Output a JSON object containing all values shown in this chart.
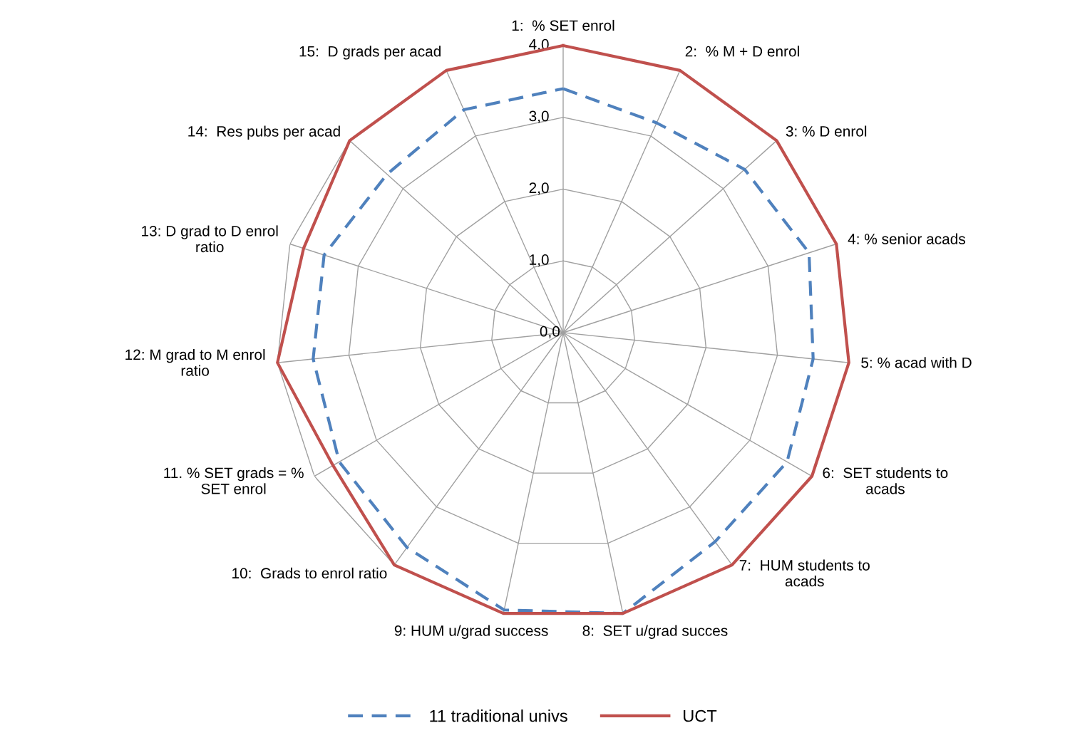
{
  "chart_data": {
    "type": "radar",
    "categories": [
      "1:  % SET enrol",
      "2:  % M + D enrol",
      "3: % D enrol",
      "4: % senior acads",
      "5: % acad with D",
      "6:  SET students to\nacads",
      "7:  HUM students to\nacads",
      "8:  SET u/grad succes",
      "9: HUM u/grad success",
      "10:  Grads to enrol ratio",
      "11. % SET grads = %\nSET enrol",
      "12: M grad to M enrol\nratio",
      "13: D grad to D enrol\nratio",
      "14:  Res pubs per acad",
      "15:  D grads per acad"
    ],
    "series": [
      {
        "name": "11 traditional univs",
        "color": "#4f81bd",
        "line_style": "dashed",
        "values": [
          3.4,
          3.2,
          3.4,
          3.6,
          3.5,
          3.6,
          3.6,
          4.0,
          3.95,
          3.7,
          3.6,
          3.5,
          3.5,
          3.3,
          3.4
        ]
      },
      {
        "name": "UCT",
        "color": "#c0504d",
        "line_style": "solid",
        "values": [
          4.0,
          4.0,
          4.0,
          4.0,
          4.0,
          4.0,
          4.0,
          4.0,
          4.0,
          4.0,
          3.7,
          4.0,
          3.8,
          4.0,
          4.0
        ]
      }
    ],
    "ylim": [
      0,
      4
    ],
    "yticks": [
      {
        "value": 0,
        "label": "0,0"
      },
      {
        "value": 1,
        "label": "1,0"
      },
      {
        "value": 2,
        "label": "2,0"
      },
      {
        "value": 3,
        "label": "3,0"
      },
      {
        "value": 4,
        "label": "4,0"
      }
    ],
    "grid": true,
    "legend": "bottom"
  }
}
